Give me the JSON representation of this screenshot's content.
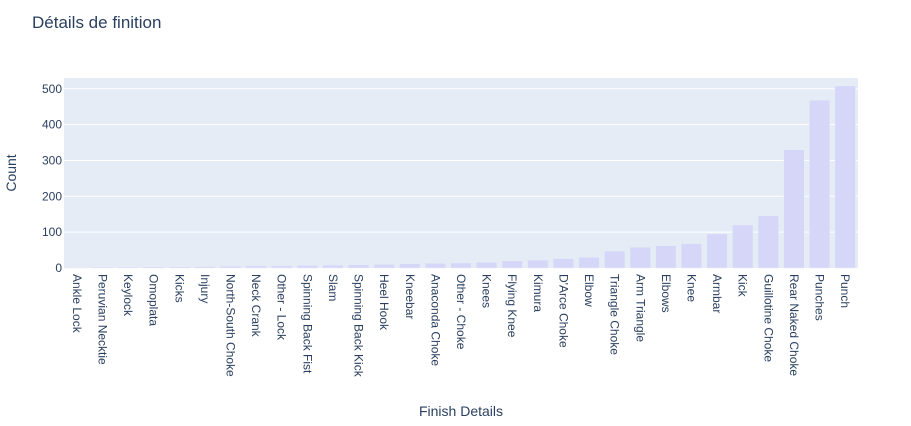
{
  "chart_data": {
    "type": "bar",
    "title": "Détails de finition",
    "xlabel": "Finish Details",
    "ylabel": "Count",
    "ylim": [
      0,
      530
    ],
    "yticks": [
      0,
      100,
      200,
      300,
      400,
      500
    ],
    "grid": true,
    "categories": [
      "Ankle Lock",
      "Peruvian Necktie",
      "Keylock",
      "Omoplata",
      "Kicks",
      "Injury",
      "North-South Choke",
      "Neck Crank",
      "Other - Lock",
      "Spinning Back Fist",
      "Slam",
      "Spinning Back Kick",
      "Heel Hook",
      "Kneebar",
      "Anaconda Choke",
      "Other - Choke",
      "Knees",
      "Flying Knee",
      "Kimura",
      "D'Arce Choke",
      "Elbow",
      "Triangle Choke",
      "Arm Triangle",
      "Elbows",
      "Knee",
      "Armbar",
      "Kick",
      "Guillotine Choke",
      "Rear Naked Choke",
      "Punches",
      "Punch"
    ],
    "values": [
      1,
      2,
      2,
      3,
      3,
      4,
      5,
      6,
      6,
      7,
      8,
      9,
      10,
      12,
      13,
      14,
      16,
      20,
      22,
      26,
      30,
      47,
      58,
      62,
      68,
      95,
      120,
      146,
      330,
      468,
      508
    ]
  }
}
